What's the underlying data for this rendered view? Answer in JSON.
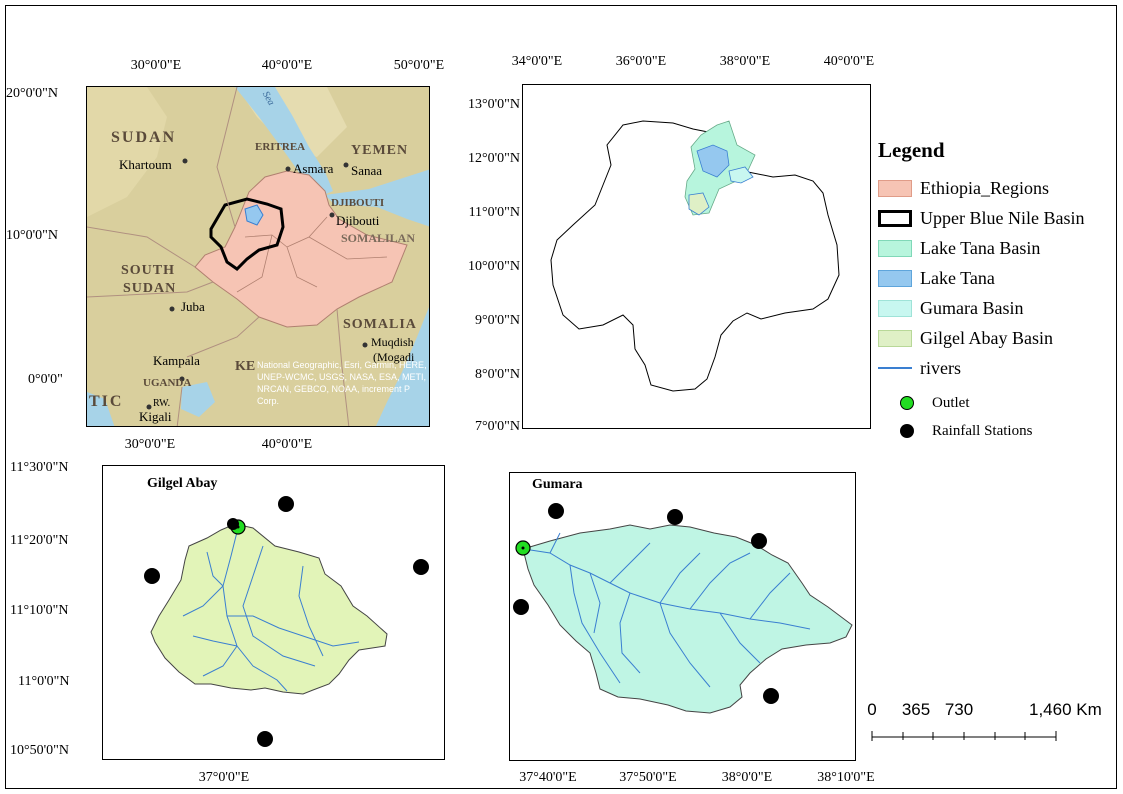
{
  "inset_map": {
    "top_ticks": [
      "30°0'0\"E",
      "40°0'0\"E",
      "50°0'0\"E"
    ],
    "bottom_ticks": [
      "30°0'0\"E",
      "40°0'0\"E"
    ],
    "left_ticks": [
      "20°0'0\"N",
      "10°0'0\"N",
      "0°0'0\""
    ],
    "place_labels": [
      "SUDAN",
      "Khartoum",
      "ERITREA",
      "Asmara",
      "YEMEN",
      "Sanaa",
      "DJIBOUTI",
      "Djibouti",
      "SOMALILAN",
      "SOUTH",
      "SUDAN",
      "Juba",
      "SOMALIA",
      "Muqdish",
      "(Mogadi",
      "Kampala",
      "UGANDA",
      "KE",
      "TIC",
      "RW.",
      "Kigali",
      "Sea"
    ],
    "credit": "National Geographic, Esri, Garmin, HERE, UNEP-WCMC, USGS, NASA, ESA, METI, NRCAN, GEBCO, NOAA, increment P Corp."
  },
  "basin_map": {
    "top_ticks": [
      "34°0'0\"E",
      "36°0'0\"E",
      "38°0'0\"E",
      "40°0'0\"E"
    ],
    "left_ticks": [
      "13°0'0\"N",
      "12°0'0\"N",
      "11°0'0\"N",
      "10°0'0\"N",
      "9°0'0\"N",
      "8°0'0\"N",
      "7°0'0\"N"
    ]
  },
  "legend": {
    "title": "Legend",
    "items": [
      {
        "label": "Ethiopia_Regions",
        "fill": "#f6c4b4",
        "stroke": "#e09c88"
      },
      {
        "label": "Upper Blue Nile Basin",
        "fill": "#ffffff",
        "stroke": "#000000"
      },
      {
        "label": "Lake Tana Basin",
        "fill": "#b7f5dd",
        "stroke": "#80d8b8"
      },
      {
        "label": "Lake Tana",
        "fill": "#95c8ef",
        "stroke": "#5fa5db"
      },
      {
        "label": "Gumara Basin",
        "fill": "#c8f7f0",
        "stroke": "#9fe3d8"
      },
      {
        "label": "Gilgel Abay Basin",
        "fill": "#dff0c6",
        "stroke": "#b8d898"
      }
    ],
    "rivers_label": "rivers",
    "outlet_label": "Outlet",
    "rainfall_label": "Rainfall Stations"
  },
  "gilgel_map": {
    "title": "Gilgel Abay",
    "left_ticks": [
      "11°30'0\"N",
      "11°20'0\"N",
      "11°10'0\"N",
      "11°0'0\"N",
      "10°50'0\"N"
    ],
    "bottom_ticks": [
      "37°0'0\"E"
    ]
  },
  "gumara_map": {
    "title": "Gumara",
    "bottom_ticks": [
      "37°40'0\"E",
      "37°50'0\"E",
      "38°0'0\"E",
      "38°10'0\"E"
    ]
  },
  "scale_bar": {
    "labels": [
      "0",
      "365",
      "730",
      "1,460 Km"
    ],
    "values_km": [
      0,
      365,
      730,
      1460
    ]
  },
  "colors": {
    "water": "#a7d3e8",
    "land": "#d9cf9d",
    "ethiopia": "#f6c4b4",
    "gilgel_fill": "#e2f4b8",
    "gumara_fill": "#bff5e4",
    "river": "#3a7fd1",
    "outlet": "#22dd22",
    "station": "#000000"
  }
}
